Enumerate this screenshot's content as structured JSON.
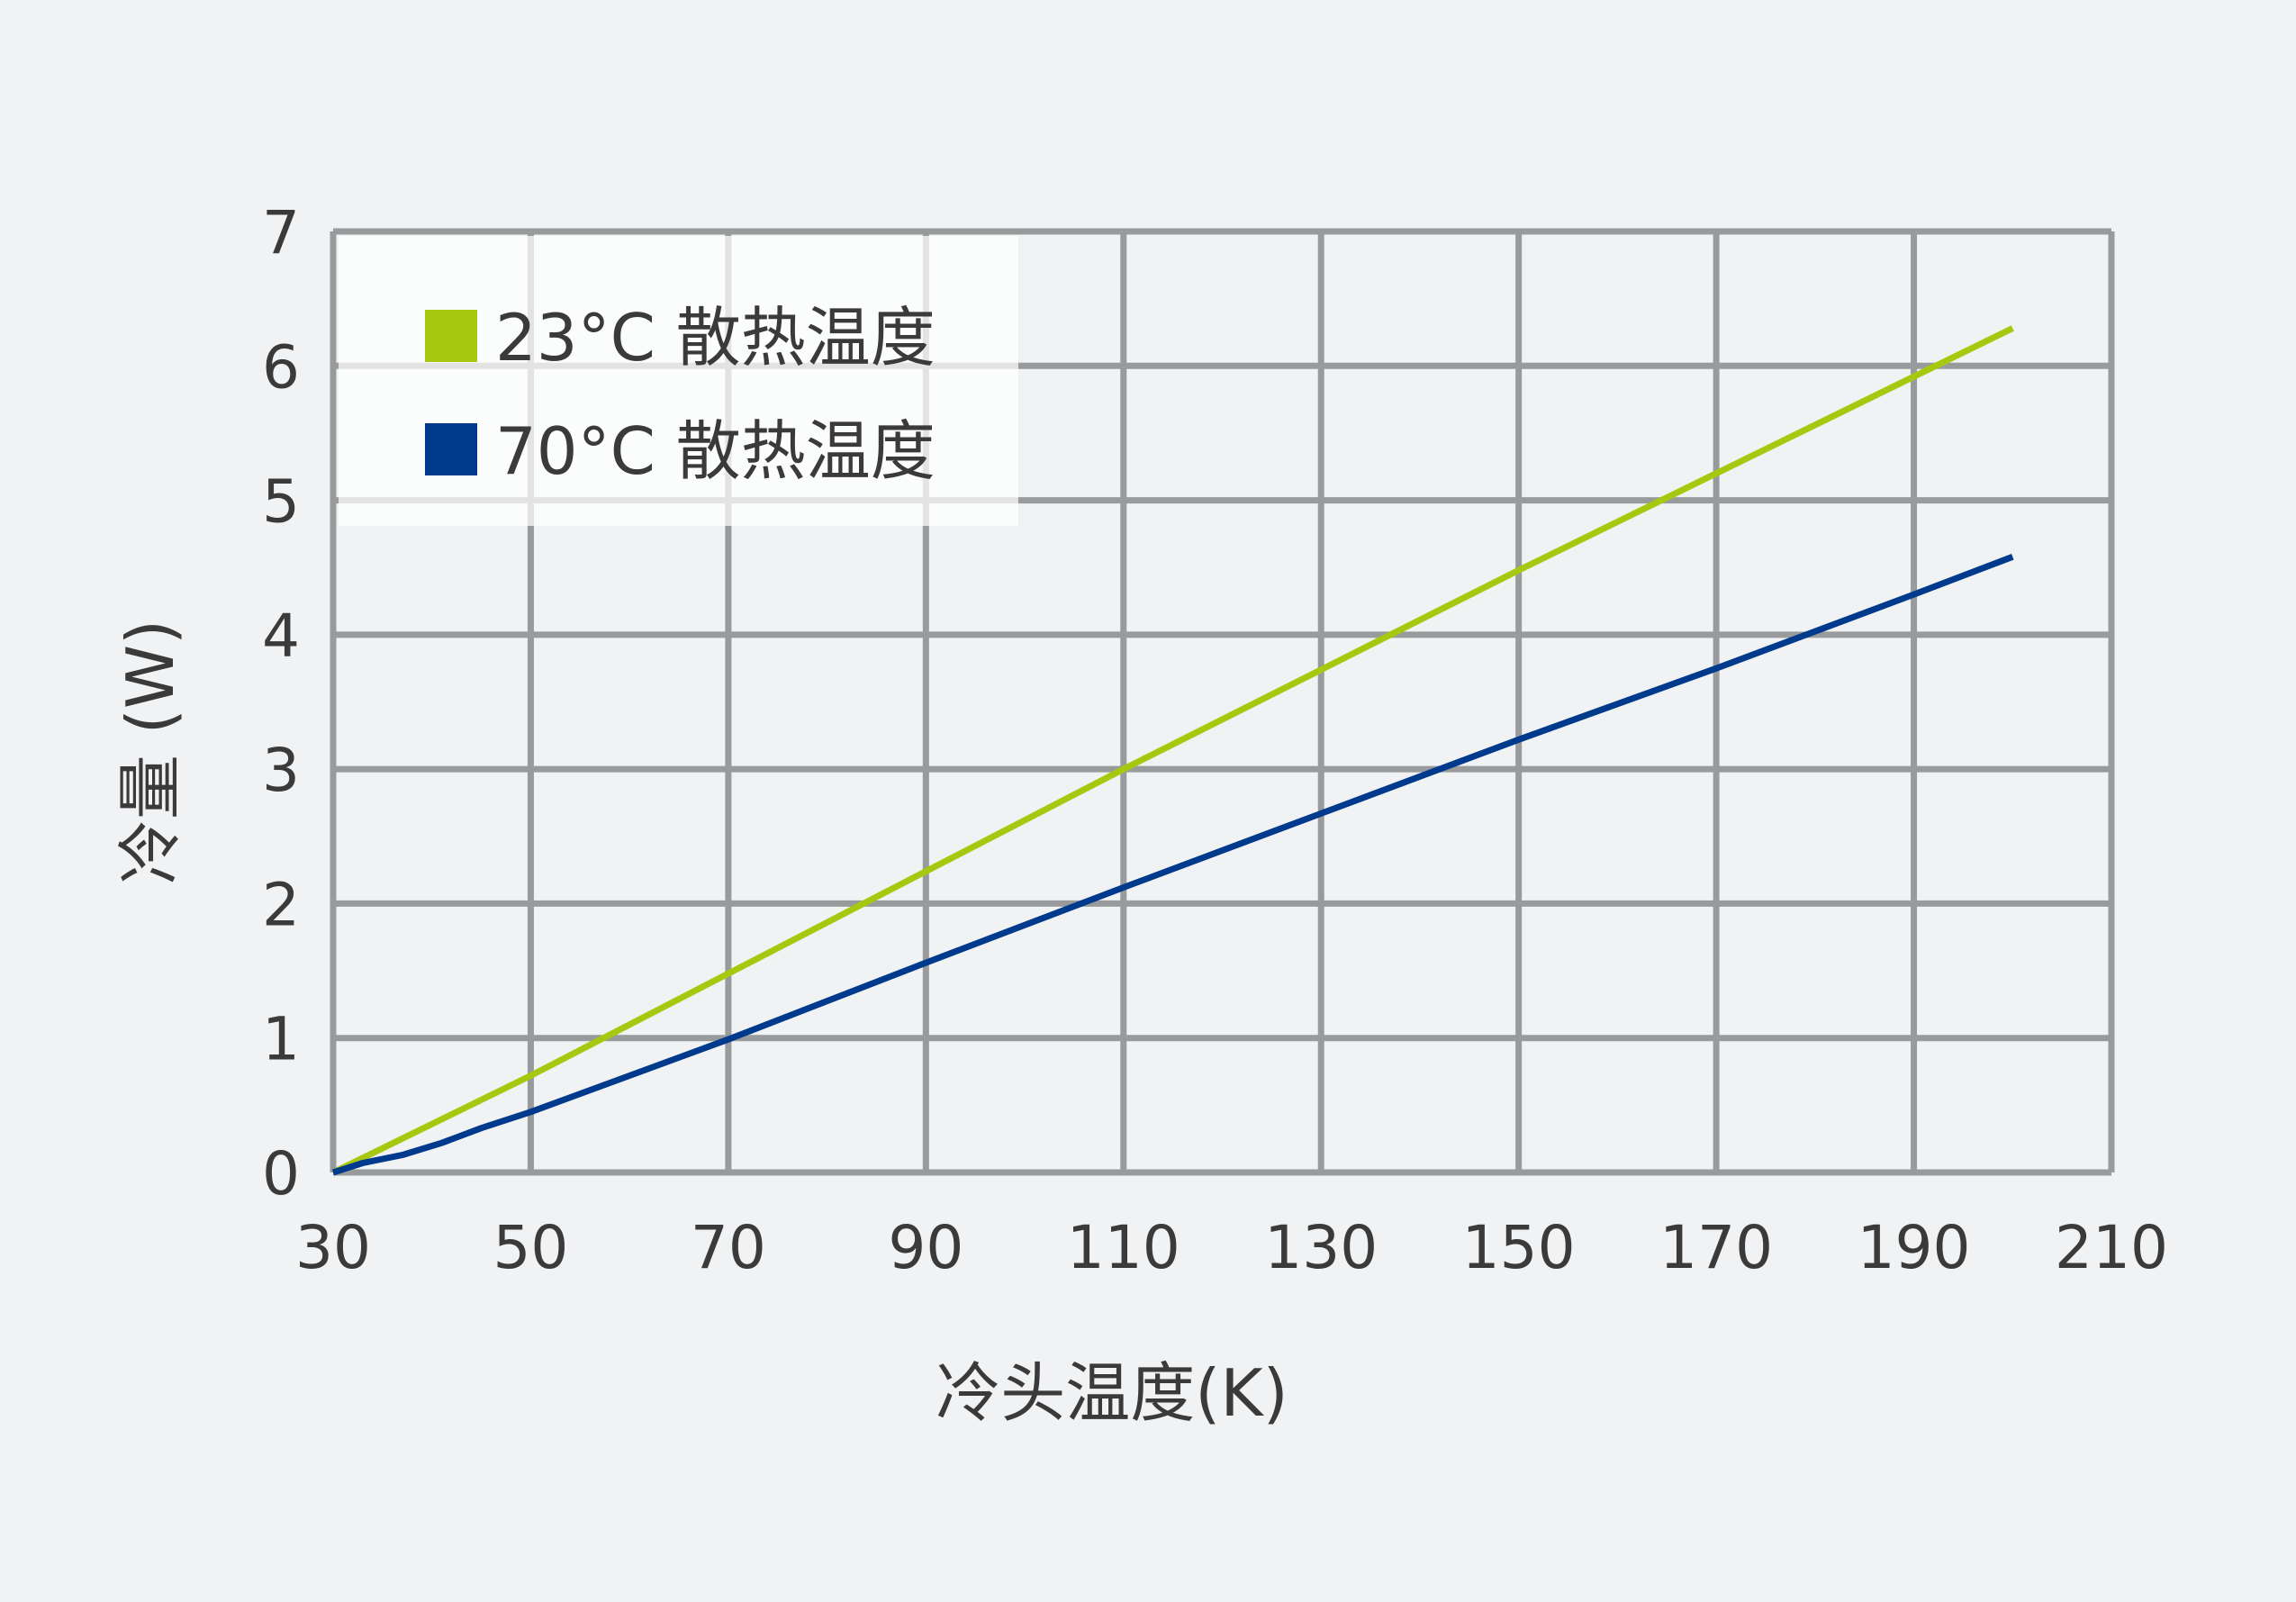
{
  "chart_data": {
    "type": "line",
    "xlabel": "冷头温度(K)",
    "ylabel": "冷量 (W)",
    "xlim": [
      30,
      210
    ],
    "ylim": [
      0,
      7
    ],
    "x_ticks": [
      "30",
      "50",
      "70",
      "90",
      "110",
      "130",
      "150",
      "170",
      "190",
      "210"
    ],
    "y_ticks": [
      "0",
      "1",
      "2",
      "3",
      "4",
      "5",
      "6",
      "7"
    ],
    "grid": true,
    "legend_position": "top-left",
    "series": [
      {
        "name": "23°C 散热温度",
        "color": "#a8c80f",
        "x": [
          30,
          50,
          70,
          90,
          110,
          130,
          150,
          170,
          190,
          200
        ],
        "y": [
          0,
          0.72,
          1.48,
          2.24,
          3.0,
          3.74,
          4.48,
          5.2,
          5.92,
          6.28
        ]
      },
      {
        "name": "70°C 散热温度",
        "color": "#003a8c",
        "x": [
          30,
          33,
          37,
          41,
          45,
          50,
          70,
          90,
          110,
          130,
          150,
          170,
          190,
          200
        ],
        "y": [
          0,
          0.07,
          0.13,
          0.22,
          0.33,
          0.45,
          0.99,
          1.56,
          2.12,
          2.67,
          3.22,
          3.75,
          4.3,
          4.58
        ]
      }
    ]
  }
}
